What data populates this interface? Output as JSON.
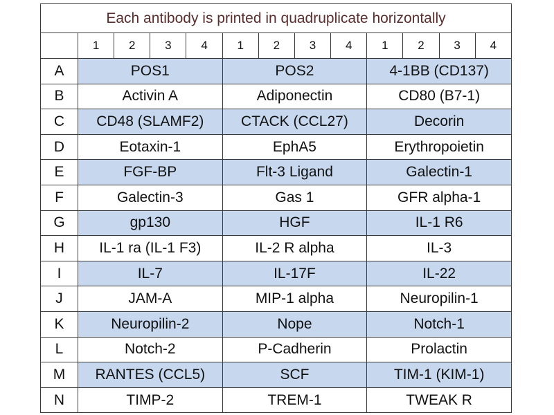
{
  "table": {
    "title": "Each antibody is printed in quadruplicate horizontally",
    "columns": [
      "1",
      "2",
      "3",
      "4",
      "1",
      "2",
      "3",
      "4",
      "1",
      "2",
      "3",
      "4"
    ],
    "rows": [
      {
        "label": "A",
        "cells": [
          "POS1",
          "POS2",
          "4-1BB (CD137)"
        ]
      },
      {
        "label": "B",
        "cells": [
          "Activin A",
          "Adiponectin",
          "CD80 (B7-1)"
        ]
      },
      {
        "label": "C",
        "cells": [
          "CD48 (SLAMF2)",
          "CTACK (CCL27)",
          "Decorin"
        ]
      },
      {
        "label": "D",
        "cells": [
          "Eotaxin-1",
          "EphA5",
          "Erythropoietin"
        ]
      },
      {
        "label": "E",
        "cells": [
          "FGF-BP",
          "Flt-3 Ligand",
          "Galectin-1"
        ]
      },
      {
        "label": "F",
        "cells": [
          "Galectin-3",
          "Gas 1",
          "GFR alpha-1"
        ]
      },
      {
        "label": "G",
        "cells": [
          "gp130",
          "HGF",
          "IL-1 R6"
        ]
      },
      {
        "label": "H",
        "cells": [
          "IL-1 ra (IL-1 F3)",
          "IL-2 R alpha",
          "IL-3"
        ]
      },
      {
        "label": "I",
        "cells": [
          "IL-7",
          "IL-17F",
          "IL-22"
        ]
      },
      {
        "label": "J",
        "cells": [
          "JAM-A",
          "MIP-1 alpha",
          "Neuropilin-1"
        ]
      },
      {
        "label": "K",
        "cells": [
          "Neuropilin-2",
          "Nope",
          "Notch-1"
        ]
      },
      {
        "label": "L",
        "cells": [
          "Notch-2",
          "P-Cadherin",
          "Prolactin"
        ]
      },
      {
        "label": "M",
        "cells": [
          "RANTES (CCL5)",
          "SCF",
          "TIM-1 (KIM-1)"
        ]
      },
      {
        "label": "N",
        "cells": [
          "TIMP-2",
          "TREM-1",
          "TWEAK R"
        ]
      }
    ]
  }
}
